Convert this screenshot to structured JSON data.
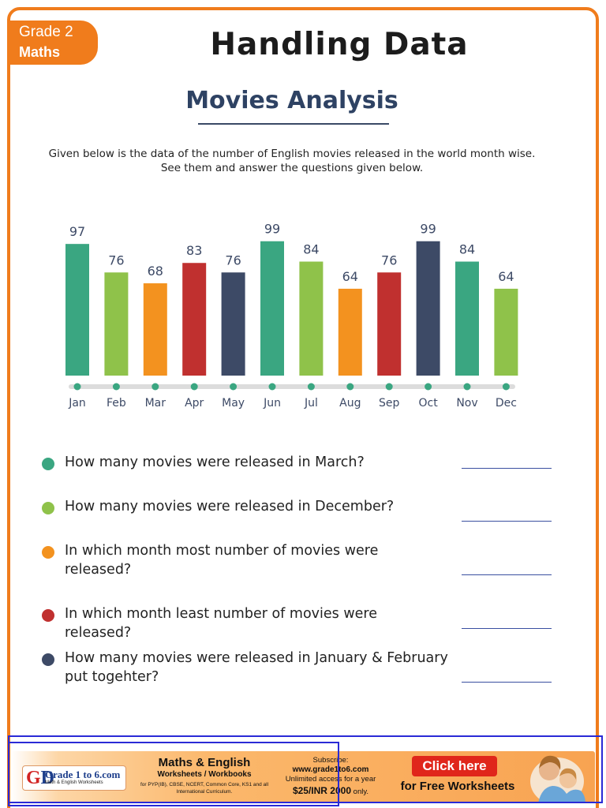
{
  "header": {
    "grade": "Grade 2",
    "subject": "Maths",
    "title": "Handling Data",
    "subtitle": "Movies Analysis"
  },
  "intro": {
    "line1": "Given below is the data of the number of English movies released in the world month wise.",
    "line2": "See them and answer the questions given below."
  },
  "colors": {
    "teal": "#3aa681",
    "green": "#8fc24a",
    "orange": "#f3921f",
    "red": "#c0302f",
    "navy": "#3d4a66",
    "frame": "#f07c1c"
  },
  "chart_data": {
    "type": "bar",
    "categories": [
      "Jan",
      "Feb",
      "Mar",
      "Apr",
      "May",
      "Jun",
      "Jul",
      "Aug",
      "Sep",
      "Oct",
      "Nov",
      "Dec"
    ],
    "values": [
      97,
      76,
      68,
      83,
      76,
      99,
      84,
      64,
      76,
      99,
      84,
      64
    ],
    "bar_colors": [
      "#3aa681",
      "#8fc24a",
      "#f3921f",
      "#c0302f",
      "#3d4a66",
      "#3aa681",
      "#8fc24a",
      "#f3921f",
      "#c0302f",
      "#3d4a66",
      "#3aa681",
      "#8fc24a"
    ],
    "title": "",
    "xlabel": "",
    "ylabel": "",
    "ylim": [
      0,
      100
    ],
    "grid": false,
    "data_labels": true
  },
  "questions": [
    {
      "text": "How many movies were released in March?",
      "color": "#3aa681"
    },
    {
      "text": "How many movies were released in December?",
      "color": "#8fc24a"
    },
    {
      "text": "In which month most number of movies were released?",
      "color": "#f3921f"
    },
    {
      "text": "In which month least number of movies were released?",
      "color": "#c0302f"
    },
    {
      "text": "How many movies were released in January & February put togehter?",
      "color": "#3d4a66"
    }
  ],
  "banner": {
    "logo_name": "Grade 1 to 6.com",
    "logo_tagline": "Math & English Worksheets",
    "title": "Maths & English",
    "subtitle": "Worksheets / Workbooks",
    "curriculum": "for PYP(IB), CBSE, NCERT, Common Core, KS1 and all International Curriculum.",
    "subscribe": "Subscribe:",
    "site": "www.grade1to6.com",
    "access": "Unlimited access for a year",
    "price": "$25/INR 2000",
    "price_suffix": "only.",
    "button": "Click here",
    "free": "for Free Worksheets"
  }
}
